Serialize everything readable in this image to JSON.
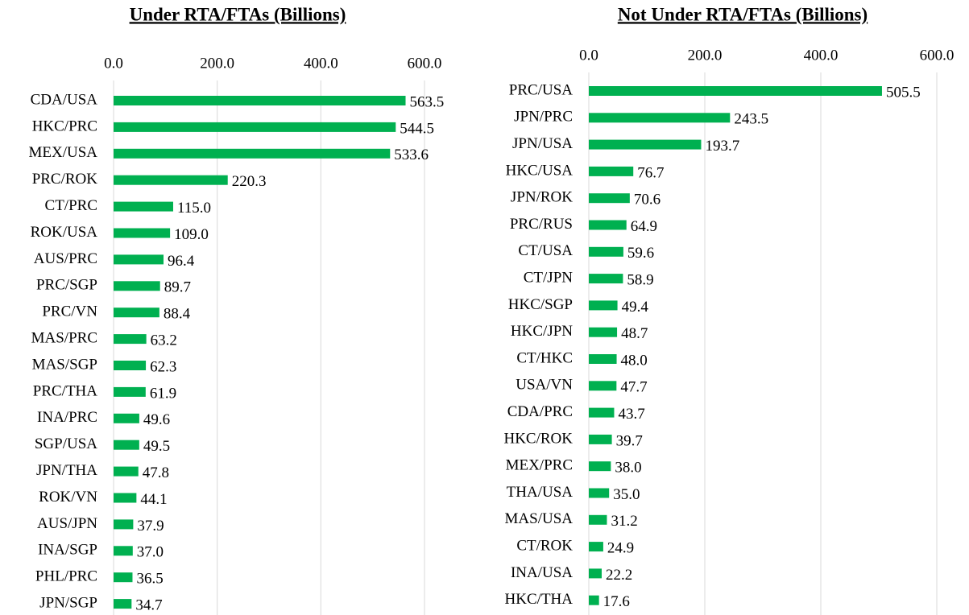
{
  "chart_data": [
    {
      "type": "hbar",
      "title": "Under RTA/FTAs (Billions)",
      "color": "#00b050",
      "grid": true,
      "xlim": [
        0,
        600
      ],
      "xticks": [
        {
          "value": 0,
          "label": "0.0"
        },
        {
          "value": 200,
          "label": "200.0"
        },
        {
          "value": 400,
          "label": "400.0"
        },
        {
          "value": 600,
          "label": "600.0"
        }
      ],
      "categories": [
        "CDA/USA",
        "HKC/PRC",
        "MEX/USA",
        "PRC/ROK",
        "CT/PRC",
        "ROK/USA",
        "AUS/PRC",
        "PRC/SGP",
        "PRC/VN",
        "MAS/PRC",
        "MAS/SGP",
        "PRC/THA",
        "INA/PRC",
        "SGP/USA",
        "JPN/THA",
        "ROK/VN",
        "AUS/JPN",
        "INA/SGP",
        "PHL/PRC",
        "JPN/SGP"
      ],
      "values": [
        563.5,
        544.5,
        533.6,
        220.3,
        115.0,
        109.0,
        96.4,
        89.7,
        88.4,
        63.2,
        62.3,
        61.9,
        49.6,
        49.5,
        47.8,
        44.1,
        37.9,
        37.0,
        36.5,
        34.7
      ],
      "value_labels": [
        "563.5",
        "544.5",
        "533.6",
        "220.3",
        "115.0",
        "109.0",
        "96.4",
        "89.7",
        "88.4",
        "63.2",
        "62.3",
        "61.9",
        "49.6",
        "49.5",
        "47.8",
        "44.1",
        "37.9",
        "37.0",
        "36.5",
        "34.7"
      ]
    },
    {
      "type": "hbar",
      "title": "Not Under RTA/FTAs (Billions)",
      "color": "#00b050",
      "grid": true,
      "xlim": [
        0,
        600
      ],
      "xticks": [
        {
          "value": 0,
          "label": "0.0"
        },
        {
          "value": 200,
          "label": "200.0"
        },
        {
          "value": 400,
          "label": "400.0"
        },
        {
          "value": 600,
          "label": "600.0"
        }
      ],
      "categories": [
        "PRC/USA",
        "JPN/PRC",
        "JPN/USA",
        "HKC/USA",
        "JPN/ROK",
        "PRC/RUS",
        "CT/USA",
        "CT/JPN",
        "HKC/SGP",
        "HKC/JPN",
        "CT/HKC",
        "USA/VN",
        "CDA/PRC",
        "HKC/ROK",
        "MEX/PRC",
        "THA/USA",
        "MAS/USA",
        "CT/ROK",
        "INA/USA",
        "HKC/THA"
      ],
      "values": [
        505.5,
        243.5,
        193.7,
        76.7,
        70.6,
        64.9,
        59.6,
        58.9,
        49.4,
        48.7,
        48.0,
        47.7,
        43.7,
        39.7,
        38.0,
        35.0,
        31.2,
        24.9,
        22.2,
        17.6
      ],
      "value_labels": [
        "505.5",
        "243.5",
        "193.7",
        "76.7",
        "70.6",
        "64.9",
        "59.6",
        "58.9",
        "49.4",
        "48.7",
        "48.0",
        "47.7",
        "43.7",
        "39.7",
        "38.0",
        "35.0",
        "31.2",
        "24.9",
        "22.2",
        "17.6"
      ]
    }
  ]
}
